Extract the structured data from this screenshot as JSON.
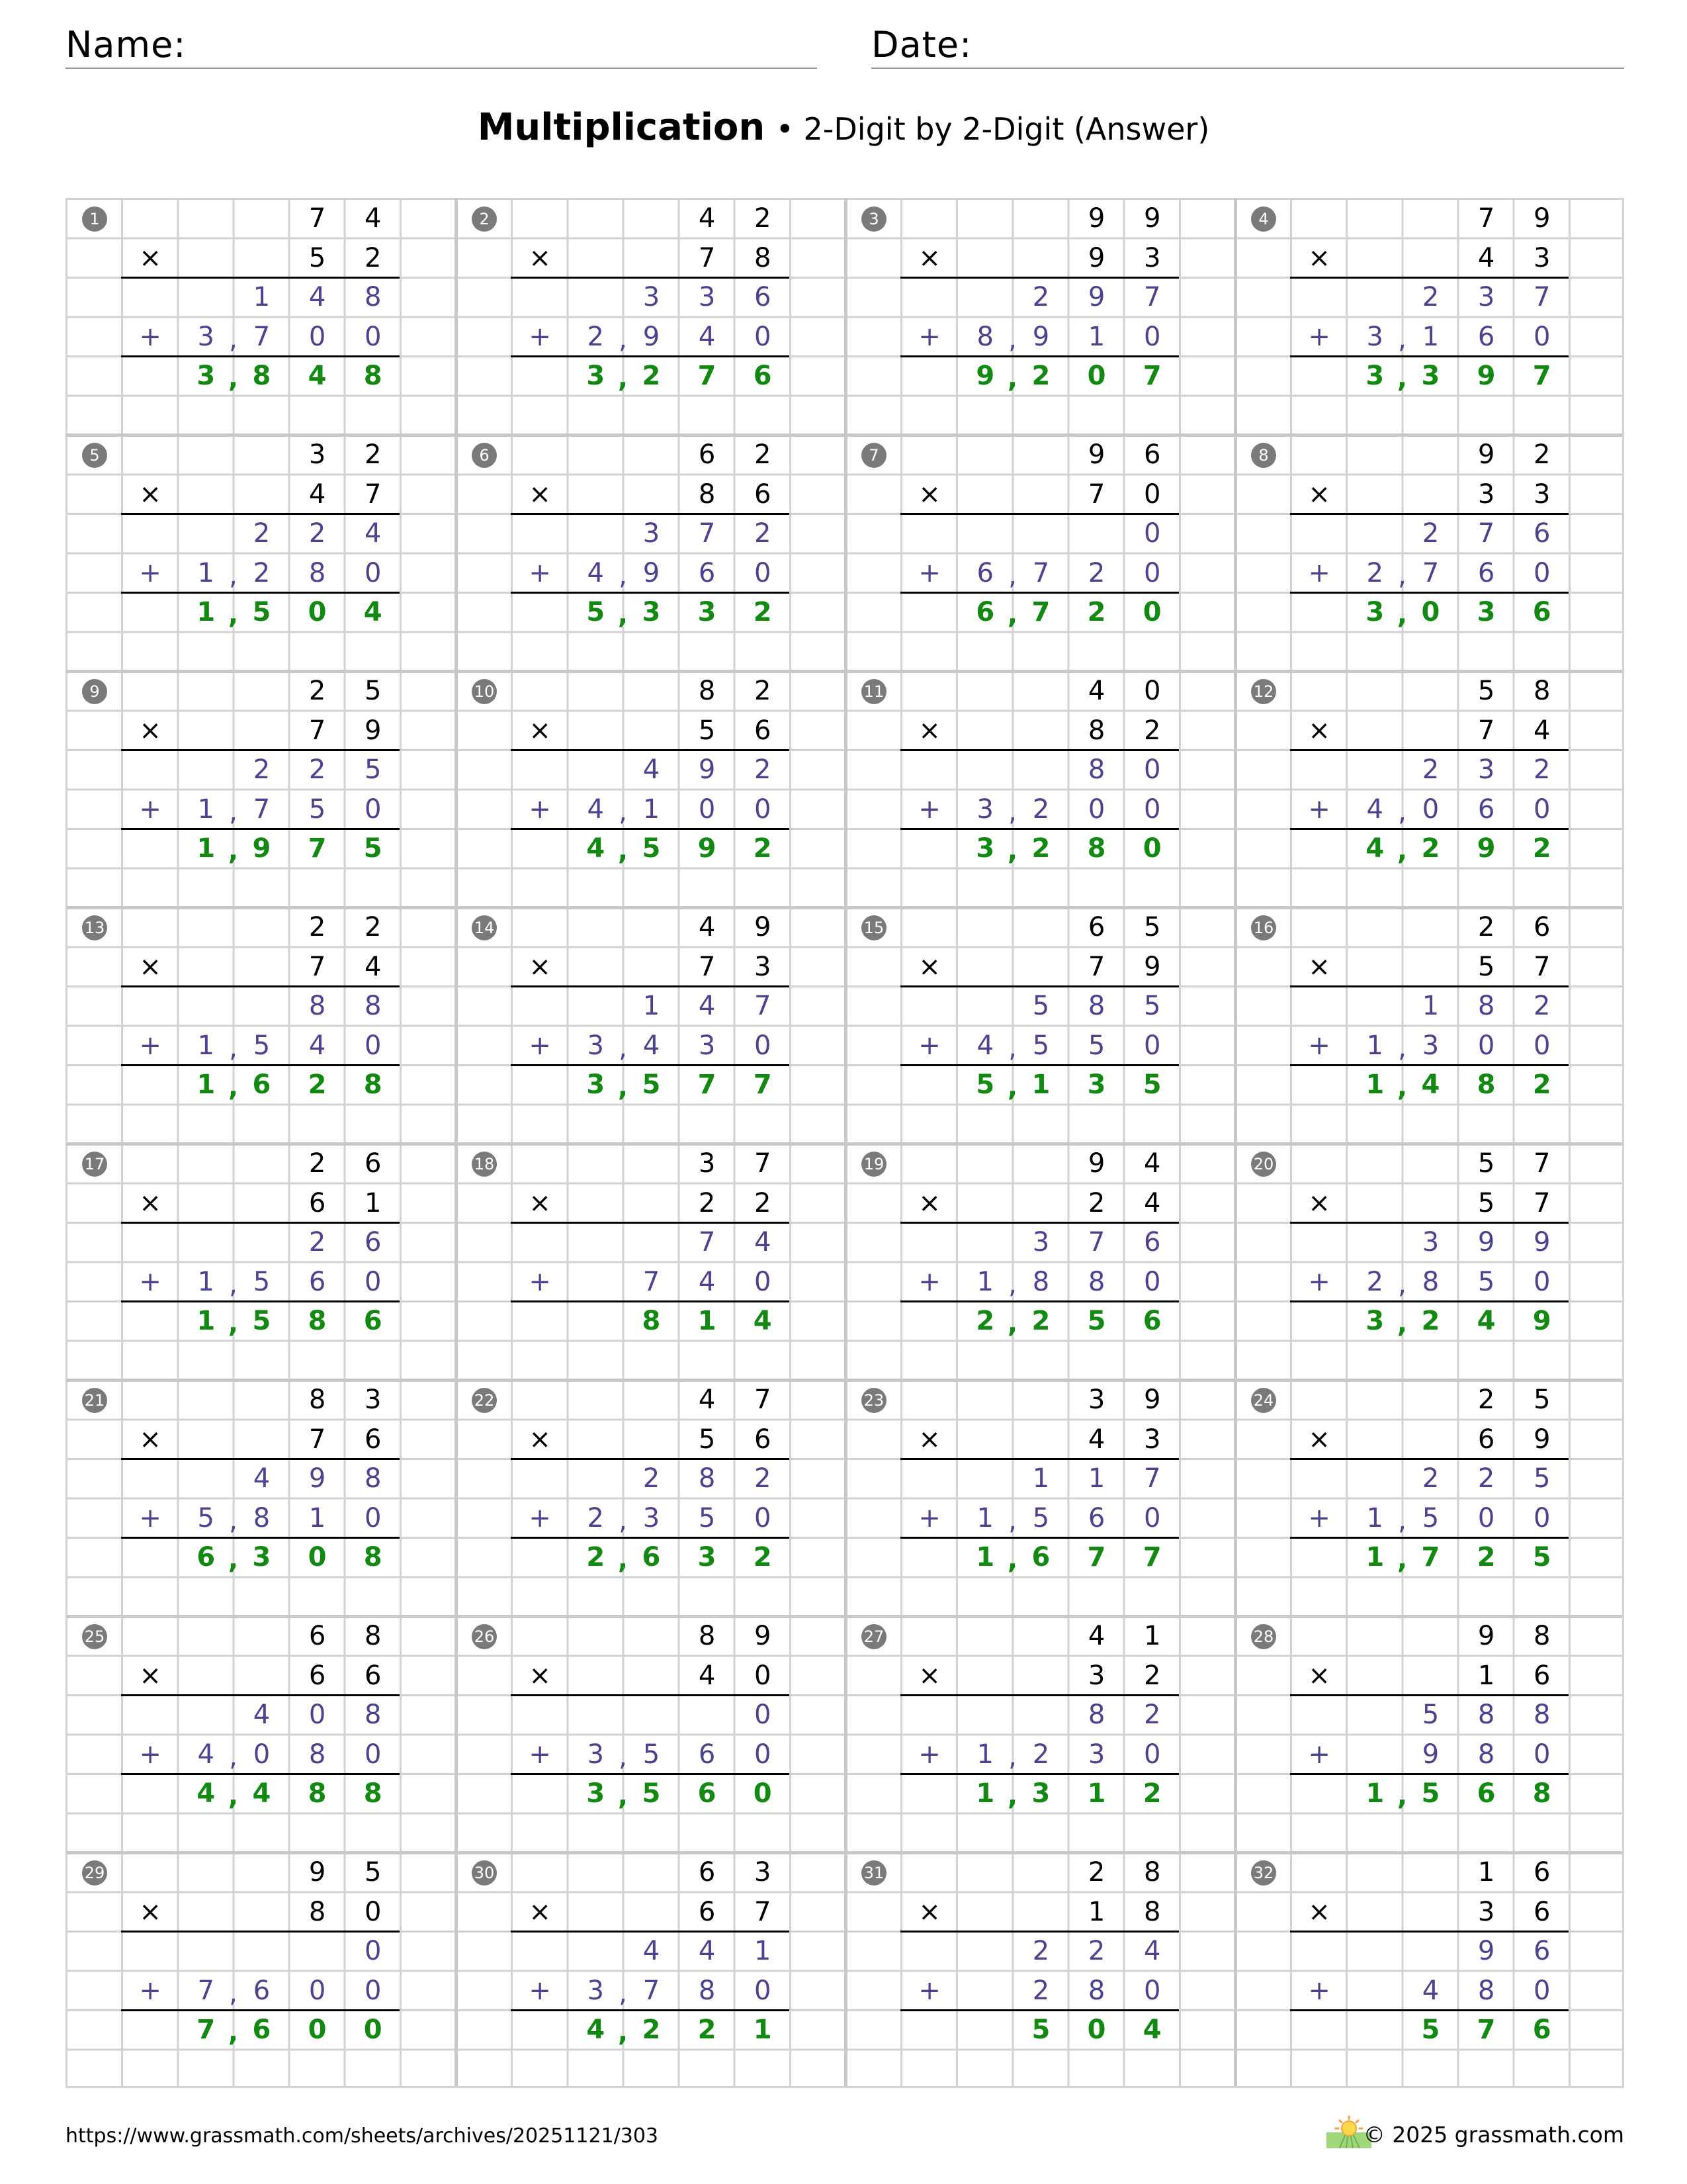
{
  "header": {
    "name_label": "Name:",
    "date_label": "Date:"
  },
  "title": {
    "main": "Multiplication",
    "sub": "• 2-Digit by 2-Digit (Answer)"
  },
  "symbols": {
    "times": "×",
    "plus": "+"
  },
  "colors": {
    "multiplicand": "#000000",
    "partials": "#4a4390",
    "answer": "#128a12",
    "badge": "#7a7a7a",
    "grid": "#d2d2d2"
  },
  "problems": [
    {
      "n": "1",
      "a": "74",
      "b": "52",
      "p1": "148",
      "p2": "3700",
      "ans": "3848"
    },
    {
      "n": "2",
      "a": "42",
      "b": "78",
      "p1": "336",
      "p2": "2940",
      "ans": "3276"
    },
    {
      "n": "3",
      "a": "99",
      "b": "93",
      "p1": "297",
      "p2": "8910",
      "ans": "9207"
    },
    {
      "n": "4",
      "a": "79",
      "b": "43",
      "p1": "237",
      "p2": "3160",
      "ans": "3397"
    },
    {
      "n": "5",
      "a": "32",
      "b": "47",
      "p1": "224",
      "p2": "1280",
      "ans": "1504"
    },
    {
      "n": "6",
      "a": "62",
      "b": "86",
      "p1": "372",
      "p2": "4960",
      "ans": "5332"
    },
    {
      "n": "7",
      "a": "96",
      "b": "70",
      "p1": "0",
      "p2": "6720",
      "ans": "6720"
    },
    {
      "n": "8",
      "a": "92",
      "b": "33",
      "p1": "276",
      "p2": "2760",
      "ans": "3036"
    },
    {
      "n": "9",
      "a": "25",
      "b": "79",
      "p1": "225",
      "p2": "1750",
      "ans": "1975"
    },
    {
      "n": "10",
      "a": "82",
      "b": "56",
      "p1": "492",
      "p2": "4100",
      "ans": "4592"
    },
    {
      "n": "11",
      "a": "40",
      "b": "82",
      "p1": "80",
      "p2": "3200",
      "ans": "3280"
    },
    {
      "n": "12",
      "a": "58",
      "b": "74",
      "p1": "232",
      "p2": "4060",
      "ans": "4292"
    },
    {
      "n": "13",
      "a": "22",
      "b": "74",
      "p1": "88",
      "p2": "1540",
      "ans": "1628"
    },
    {
      "n": "14",
      "a": "49",
      "b": "73",
      "p1": "147",
      "p2": "3430",
      "ans": "3577"
    },
    {
      "n": "15",
      "a": "65",
      "b": "79",
      "p1": "585",
      "p2": "4550",
      "ans": "5135"
    },
    {
      "n": "16",
      "a": "26",
      "b": "57",
      "p1": "182",
      "p2": "1300",
      "ans": "1482"
    },
    {
      "n": "17",
      "a": "26",
      "b": "61",
      "p1": "26",
      "p2": "1560",
      "ans": "1586"
    },
    {
      "n": "18",
      "a": "37",
      "b": "22",
      "p1": "74",
      "p2": "740",
      "ans": "814"
    },
    {
      "n": "19",
      "a": "94",
      "b": "24",
      "p1": "376",
      "p2": "1880",
      "ans": "2256"
    },
    {
      "n": "20",
      "a": "57",
      "b": "57",
      "p1": "399",
      "p2": "2850",
      "ans": "3249"
    },
    {
      "n": "21",
      "a": "83",
      "b": "76",
      "p1": "498",
      "p2": "5810",
      "ans": "6308"
    },
    {
      "n": "22",
      "a": "47",
      "b": "56",
      "p1": "282",
      "p2": "2350",
      "ans": "2632"
    },
    {
      "n": "23",
      "a": "39",
      "b": "43",
      "p1": "117",
      "p2": "1560",
      "ans": "1677"
    },
    {
      "n": "24",
      "a": "25",
      "b": "69",
      "p1": "225",
      "p2": "1500",
      "ans": "1725"
    },
    {
      "n": "25",
      "a": "68",
      "b": "66",
      "p1": "408",
      "p2": "4080",
      "ans": "4488"
    },
    {
      "n": "26",
      "a": "89",
      "b": "40",
      "p1": "0",
      "p2": "3560",
      "ans": "3560"
    },
    {
      "n": "27",
      "a": "41",
      "b": "32",
      "p1": "82",
      "p2": "1230",
      "ans": "1312"
    },
    {
      "n": "28",
      "a": "98",
      "b": "16",
      "p1": "588",
      "p2": "980",
      "ans": "1568"
    },
    {
      "n": "29",
      "a": "95",
      "b": "80",
      "p1": "0",
      "p2": "7600",
      "ans": "7600"
    },
    {
      "n": "30",
      "a": "63",
      "b": "67",
      "p1": "441",
      "p2": "3780",
      "ans": "4221"
    },
    {
      "n": "31",
      "a": "28",
      "b": "18",
      "p1": "224",
      "p2": "280",
      "ans": "504"
    },
    {
      "n": "32",
      "a": "16",
      "b": "36",
      "p1": "96",
      "p2": "480",
      "ans": "576"
    }
  ],
  "footer": {
    "url": "https://www.grassmath.com/sheets/archives/20251121/303",
    "copyright": "© 2025 grassmath.com",
    "logo_icon": "sun-over-field-icon"
  }
}
